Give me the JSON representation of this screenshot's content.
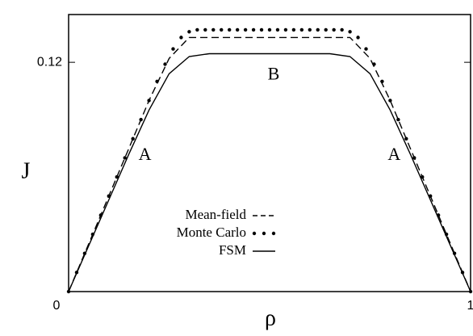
{
  "chart_data": {
    "type": "line",
    "x_label": "ρ",
    "y_label": "J",
    "xlim": [
      0,
      1
    ],
    "ylim": [
      0,
      0.145
    ],
    "xticks": [
      0,
      1
    ],
    "yticks": [
      0.12
    ],
    "annotations": [
      {
        "text": "A",
        "x": 0.19,
        "y": 0.071
      },
      {
        "text": "A",
        "x": 0.81,
        "y": 0.071
      },
      {
        "text": "B",
        "x": 0.51,
        "y": 0.113
      }
    ],
    "series": [
      {
        "name": "Mean-field",
        "color": "#000000",
        "style": "dashed",
        "x": [
          0,
          0.05,
          0.1,
          0.15,
          0.2,
          0.25,
          0.3,
          0.35,
          0.4,
          0.45,
          0.5,
          0.55,
          0.6,
          0.65,
          0.7,
          0.75,
          0.8,
          0.85,
          0.9,
          0.95,
          1
        ],
        "values": [
          0,
          0.025,
          0.05,
          0.075,
          0.1,
          0.122,
          0.133,
          0.133,
          0.133,
          0.133,
          0.133,
          0.133,
          0.133,
          0.133,
          0.133,
          0.122,
          0.1,
          0.075,
          0.05,
          0.025,
          0
        ]
      },
      {
        "name": "Monte Carlo",
        "color": "#000000",
        "style": "dots",
        "x": [
          0,
          0.02,
          0.04,
          0.06,
          0.08,
          0.1,
          0.12,
          0.14,
          0.16,
          0.18,
          0.2,
          0.22,
          0.24,
          0.26,
          0.28,
          0.3,
          0.32,
          0.34,
          0.36,
          0.38,
          0.4,
          0.42,
          0.44,
          0.46,
          0.48,
          0.5,
          0.52,
          0.54,
          0.56,
          0.58,
          0.6,
          0.62,
          0.64,
          0.66,
          0.68,
          0.7,
          0.72,
          0.74,
          0.76,
          0.78,
          0.8,
          0.82,
          0.84,
          0.86,
          0.88,
          0.9,
          0.92,
          0.94,
          0.96,
          0.98,
          1
        ],
        "values": [
          0,
          0.01,
          0.02,
          0.03,
          0.04,
          0.05,
          0.06,
          0.07,
          0.08,
          0.09,
          0.1,
          0.11,
          0.119,
          0.127,
          0.133,
          0.136,
          0.137,
          0.137,
          0.137,
          0.137,
          0.137,
          0.137,
          0.137,
          0.137,
          0.137,
          0.137,
          0.137,
          0.137,
          0.137,
          0.137,
          0.137,
          0.137,
          0.137,
          0.137,
          0.137,
          0.136,
          0.133,
          0.127,
          0.119,
          0.11,
          0.1,
          0.09,
          0.08,
          0.07,
          0.06,
          0.05,
          0.04,
          0.03,
          0.02,
          0.01,
          0
        ]
      },
      {
        "name": "FSM",
        "color": "#000000",
        "style": "solid",
        "x": [
          0,
          0.05,
          0.1,
          0.15,
          0.2,
          0.25,
          0.3,
          0.35,
          0.4,
          0.45,
          0.5,
          0.55,
          0.6,
          0.65,
          0.7,
          0.75,
          0.8,
          0.85,
          0.9,
          0.95,
          1
        ],
        "values": [
          0,
          0.024,
          0.048,
          0.072,
          0.095,
          0.114,
          0.123,
          0.1245,
          0.1245,
          0.1245,
          0.1245,
          0.1245,
          0.1245,
          0.1245,
          0.123,
          0.114,
          0.095,
          0.072,
          0.048,
          0.024,
          0
        ]
      }
    ]
  }
}
